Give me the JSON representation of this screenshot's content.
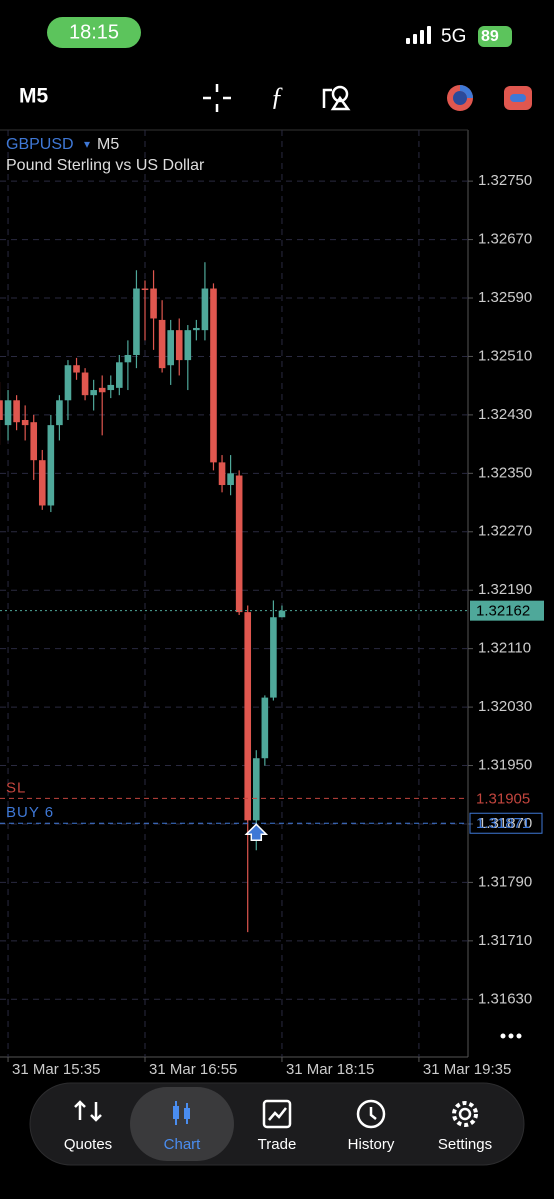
{
  "status_bar": {
    "time": "18:15",
    "network": "5G",
    "battery": "89"
  },
  "toolbar": {
    "timeframe": "M5"
  },
  "chart_data": {
    "type": "candlestick",
    "symbol": "GBPUSD",
    "timeframe": "M5",
    "description": "Pound Sterling vs US Dollar",
    "categories": [
      null,
      "31 Mar 15:35",
      null,
      null,
      null,
      null,
      null,
      null,
      null,
      null,
      null,
      null,
      null,
      null,
      null,
      null,
      null,
      "31 Mar 16:55",
      null,
      null,
      null,
      null,
      null,
      null,
      null,
      null,
      null,
      null,
      null,
      null,
      null,
      null,
      null,
      "31 Mar 18:15",
      null,
      null,
      null,
      null,
      null,
      null,
      null,
      null,
      null,
      null,
      null,
      null,
      null,
      null,
      null,
      "31 Mar 19:35",
      null,
      null,
      null,
      null,
      null
    ],
    "open": [
      1.3245,
      1.32416,
      1.3245,
      1.32423,
      1.3242,
      1.32368,
      1.32306,
      1.32416,
      1.3245,
      1.32498,
      1.32488,
      1.32457,
      1.32467,
      1.32464,
      1.32467,
      1.32502,
      1.32512,
      1.32603,
      1.32603,
      1.3256,
      1.32498,
      1.32546,
      1.32505,
      1.32546,
      1.32546,
      1.32603,
      1.32365,
      1.32334,
      1.32347,
      1.3216,
      1.31875,
      1.3196,
      1.32043,
      1.32153,
      null,
      null,
      null,
      null,
      null,
      null,
      null,
      null,
      null,
      null,
      null,
      null,
      null,
      null,
      null,
      null,
      null,
      null,
      null,
      null,
      null
    ],
    "high": [
      1.32475,
      1.32464,
      1.32457,
      1.32443,
      1.3243,
      1.32382,
      1.3243,
      1.32457,
      1.32505,
      1.32508,
      1.32494,
      1.32478,
      1.32484,
      1.32484,
      1.32512,
      1.32532,
      1.32628,
      1.32614,
      1.32628,
      1.32587,
      1.3256,
      1.32562,
      1.32553,
      1.3256,
      1.32639,
      1.3261,
      1.32375,
      1.32375,
      1.32354,
      1.32169,
      1.31971,
      1.32046,
      1.32176,
      1.32169,
      null,
      null,
      null,
      null,
      null,
      null,
      null,
      null,
      null,
      null,
      null,
      null,
      null,
      null,
      null,
      null,
      null,
      null,
      null,
      null,
      null
    ],
    "low": [
      1.32389,
      1.32395,
      1.32409,
      1.32395,
      1.32341,
      1.323,
      1.32297,
      1.32395,
      1.32423,
      1.32478,
      1.3245,
      1.32436,
      1.32402,
      1.32453,
      1.32457,
      1.32464,
      1.32494,
      1.32532,
      1.32519,
      1.32488,
      1.32471,
      1.32484,
      1.32464,
      1.32532,
      1.32532,
      1.32354,
      1.32324,
      1.3232,
      1.32156,
      1.31722,
      1.31834,
      1.3195,
      1.32039,
      1.32153,
      null,
      null,
      null,
      null,
      null,
      null,
      null,
      null,
      null,
      null,
      null,
      null,
      null,
      null,
      null,
      null,
      null,
      null,
      null,
      null,
      null
    ],
    "close": [
      1.32423,
      1.3245,
      1.3242,
      1.32416,
      1.32368,
      1.32306,
      1.32416,
      1.3245,
      1.32498,
      1.32488,
      1.32457,
      1.32464,
      1.32461,
      1.32471,
      1.32502,
      1.32512,
      1.32603,
      1.32601,
      1.32562,
      1.32494,
      1.32546,
      1.32505,
      1.32546,
      1.32549,
      1.32603,
      1.32365,
      1.32334,
      1.3235,
      1.3216,
      1.31875,
      1.3196,
      1.32043,
      1.32153,
      1.32162,
      null,
      null,
      null,
      null,
      null,
      null,
      null,
      null,
      null,
      null,
      null,
      null,
      null,
      null,
      null,
      null,
      null,
      null,
      null,
      null,
      null
    ],
    "up_color": "#4fa89a",
    "down_color": "#e0574f",
    "ylim": [
      1.31551,
      1.3282
    ],
    "yticks": [
      {
        "value": 1.3275,
        "label": "1.32750"
      },
      {
        "value": 1.3267,
        "label": "1.32670"
      },
      {
        "value": 1.3259,
        "label": "1.32590"
      },
      {
        "value": 1.3251,
        "label": "1.32510"
      },
      {
        "value": 1.3243,
        "label": "1.32430"
      },
      {
        "value": 1.3235,
        "label": "1.32350"
      },
      {
        "value": 1.3227,
        "label": "1.32270"
      },
      {
        "value": 1.3219,
        "label": "1.32190"
      },
      {
        "value": 1.3211,
        "label": "1.32110"
      },
      {
        "value": 1.3203,
        "label": "1.32030"
      },
      {
        "value": 1.3195,
        "label": "1.31950"
      },
      {
        "value": 1.3187,
        "label": "1.31870"
      },
      {
        "value": 1.3179,
        "label": "1.31790"
      },
      {
        "value": 1.3171,
        "label": "1.31710"
      },
      {
        "value": 1.3163,
        "label": "1.31630"
      }
    ],
    "grid": true,
    "current_price": 1.32162,
    "levels": [
      {
        "name": "SL",
        "value": 1.31905,
        "color": "#c2453e"
      },
      {
        "name": "BUY 6",
        "value": 1.31871,
        "color": "#3f78d6"
      }
    ]
  },
  "tab_bar": {
    "tabs": [
      "Quotes",
      "Chart",
      "Trade",
      "History",
      "Settings"
    ],
    "selected": 1
  }
}
